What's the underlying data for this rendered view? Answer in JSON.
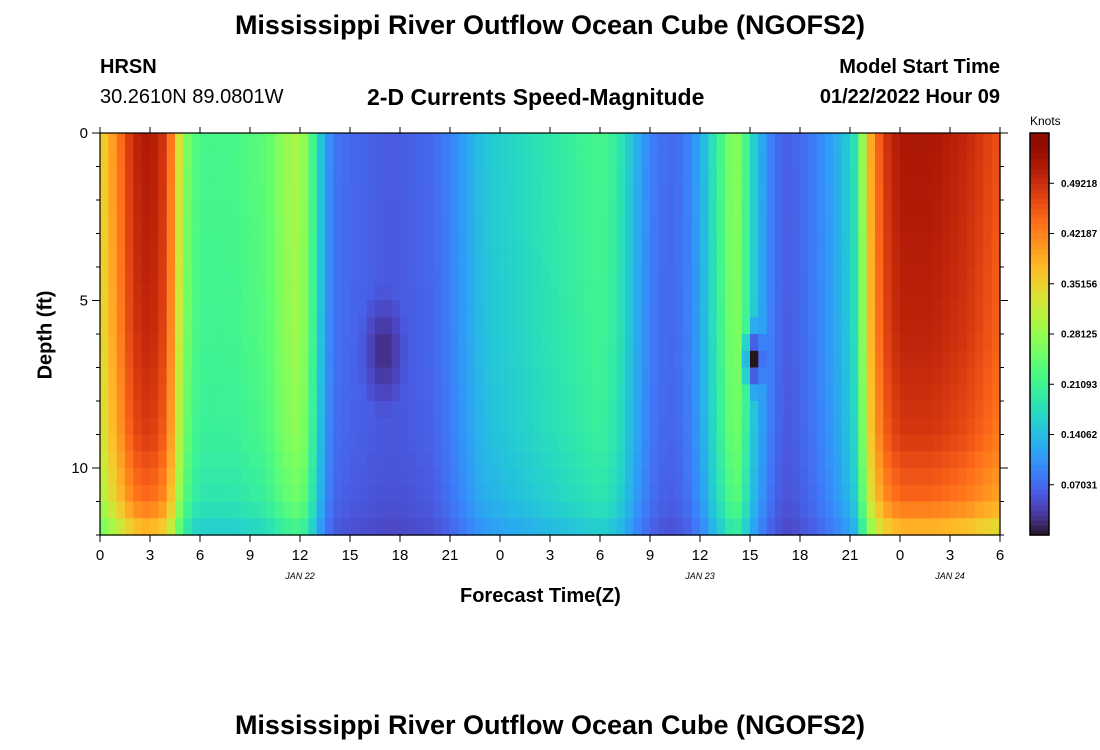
{
  "page": {
    "title_top": "Mississippi River Outflow Ocean Cube (NGOFS2)",
    "title_bottom": "Mississippi River Outflow Ocean Cube (NGOFS2)",
    "station": "HRSN",
    "coords": "30.2610N  89.0801W",
    "subtitle": "2-D Currents Speed-Magnitude",
    "model_start_label": "Model Start Time",
    "model_start_value": "01/22/2022 Hour 09"
  },
  "chart_data": {
    "type": "heatmap",
    "title": "2-D Currents Speed-Magnitude",
    "xlabel": "Forecast Time(Z)",
    "ylabel": "Depth (ft)",
    "x_tick_labels": [
      "0",
      "3",
      "6",
      "9",
      "12",
      "15",
      "18",
      "21",
      "0",
      "3",
      "6",
      "9",
      "12",
      "15",
      "18",
      "21",
      "0",
      "3",
      "6"
    ],
    "x_tick_hours": [
      0,
      3,
      6,
      9,
      12,
      15,
      18,
      21,
      24,
      27,
      30,
      33,
      36,
      39,
      42,
      45,
      48,
      51,
      54
    ],
    "date_labels": [
      {
        "text": "JAN 22",
        "hour": 12
      },
      {
        "text": "JAN 23",
        "hour": 36
      },
      {
        "text": "JAN 24",
        "hour": 51
      }
    ],
    "x_range_hours": [
      0,
      54
    ],
    "y_tick_labels": [
      "0",
      "5",
      "10"
    ],
    "y_ticks": [
      0,
      5,
      10
    ],
    "y_range_ft": [
      0,
      12
    ],
    "y_inverted": true,
    "colorbar": {
      "label": "Knots",
      "tick_labels": [
        "0.49218",
        "0.42187",
        "0.35156",
        "0.28125",
        "0.21093",
        "0.14062",
        "0.07031"
      ],
      "tick_values": [
        0.49218,
        0.42187,
        0.35156,
        0.28125,
        0.21093,
        0.14062,
        0.07031
      ],
      "range": [
        0,
        0.5625
      ],
      "colormap": "turbo"
    },
    "profile_hours": [
      0,
      0.5,
      1,
      1.5,
      2,
      3,
      4,
      4.5,
      5,
      5.5,
      6,
      8,
      10,
      11,
      12,
      12.5,
      13,
      13.5,
      14,
      15,
      16,
      17,
      18,
      19,
      20,
      21,
      22,
      23,
      24,
      26,
      28,
      30,
      31,
      32,
      33,
      34,
      35,
      36,
      37,
      38,
      38.5,
      39,
      40,
      41,
      42,
      43,
      44,
      45,
      45.5,
      46,
      47,
      48,
      50,
      52,
      54
    ],
    "profile_speed_knots": [
      0.34,
      0.38,
      0.42,
      0.46,
      0.5,
      0.52,
      0.48,
      0.38,
      0.28,
      0.24,
      0.22,
      0.22,
      0.24,
      0.28,
      0.3,
      0.26,
      0.18,
      0.12,
      0.08,
      0.07,
      0.065,
      0.06,
      0.06,
      0.065,
      0.07,
      0.09,
      0.12,
      0.15,
      0.16,
      0.18,
      0.2,
      0.22,
      0.2,
      0.14,
      0.09,
      0.07,
      0.08,
      0.12,
      0.2,
      0.28,
      0.26,
      0.18,
      0.1,
      0.06,
      0.07,
      0.09,
      0.12,
      0.16,
      0.2,
      0.36,
      0.48,
      0.52,
      0.52,
      0.5,
      0.46
    ],
    "depth_factor_breakpoints_ft": [
      0,
      6,
      9,
      11,
      12
    ],
    "depth_factor_values": [
      1.0,
      0.97,
      0.93,
      0.85,
      0.7
    ],
    "minimum_anomalies": [
      {
        "hour_range": [
          15.5,
          18.5
        ],
        "depth_range_ft": [
          4.5,
          8.5
        ],
        "min_knots": 0.015
      },
      {
        "hour_range": [
          38.5,
          40.0
        ],
        "depth_range_ft": [
          5.5,
          8.0
        ],
        "min_knots": 0.0
      }
    ]
  }
}
